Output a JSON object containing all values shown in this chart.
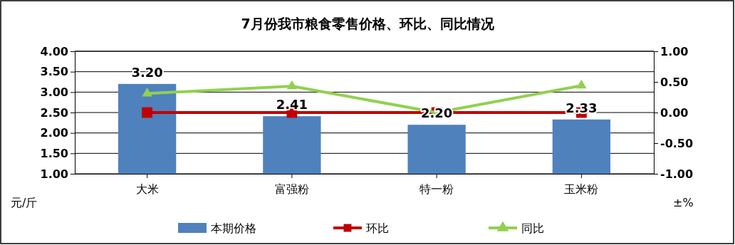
{
  "chart_data": {
    "type": "bar",
    "title": "7月份我市粮食零售价格、环比、同比情况",
    "ylabel": "元/斤",
    "y2label": "±%",
    "categories": [
      "大米",
      "富强粉",
      "特一粉",
      "玉米粉"
    ],
    "series": [
      {
        "name": "本期价格",
        "color": "#4f81bd",
        "values": [
          3.2,
          2.41,
          2.2,
          2.33
        ],
        "value_labels": [
          "3.20",
          "2.41",
          "2.20",
          "2.33"
        ]
      },
      {
        "name": "环比",
        "type": "line",
        "axis": "y2",
        "color": "#c00000",
        "marker": "square",
        "values": [
          0,
          0,
          0,
          0
        ]
      },
      {
        "name": "同比",
        "type": "line",
        "axis": "y2",
        "color": "#92d050",
        "marker": "triangle",
        "values": [
          0.31,
          0.43,
          0.0,
          0.44
        ]
      }
    ],
    "ylim": [
      1,
      4
    ],
    "yticks": [
      {
        "value": 1,
        "label": "1.00"
      },
      {
        "value": 1.5,
        "label": "1.50"
      },
      {
        "value": 2,
        "label": "2.00"
      },
      {
        "value": 2.5,
        "label": "2.50"
      },
      {
        "value": 3,
        "label": "3.00"
      },
      {
        "value": 3.5,
        "label": "3.50"
      },
      {
        "value": 4,
        "label": "4.00"
      }
    ],
    "y2lim": [
      -1,
      1
    ],
    "y2ticks": [
      {
        "value": -1,
        "label": "-1.00"
      },
      {
        "value": -0.5,
        "label": "-0.50"
      },
      {
        "value": 0,
        "label": "0.00"
      },
      {
        "value": 0.5,
        "label": "0.50"
      },
      {
        "value": 1,
        "label": "1.00"
      }
    ],
    "grid": "y",
    "legend": "bottom"
  }
}
